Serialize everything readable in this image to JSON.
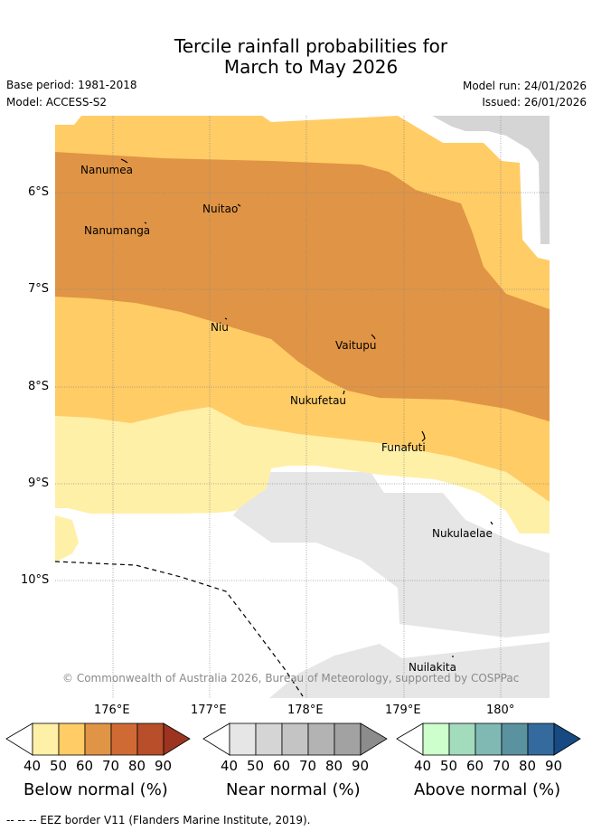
{
  "header": {
    "title_line1": "Tercile rainfall probabilities for",
    "title_line2": "March to May 2026",
    "base_period": "Base period: 1981-2018",
    "model": "Model: ACCESS-S2",
    "model_run": "Model run: 24/01/2026",
    "issued": "Issued: 26/01/2026"
  },
  "map": {
    "lat_labels": [
      "6°S",
      "7°S",
      "8°S",
      "9°S",
      "10°S"
    ],
    "lon_labels": [
      "176°E",
      "177°E",
      "178°E",
      "179°E",
      "180°"
    ],
    "places": [
      {
        "id": "nanumea",
        "name": "Nanumea"
      },
      {
        "id": "nuitao",
        "name": "Nuitao"
      },
      {
        "id": "nanumanga",
        "name": "Nanumanga"
      },
      {
        "id": "niu",
        "name": "Niu"
      },
      {
        "id": "vaitupu",
        "name": "Vaitupu"
      },
      {
        "id": "nukufetau",
        "name": "Nukufetau"
      },
      {
        "id": "funafuti",
        "name": "Funafuti"
      },
      {
        "id": "nukulaelae",
        "name": "Nukulaelae"
      },
      {
        "id": "nuilakita",
        "name": "Nuilakita"
      }
    ],
    "copyright": "© Commonwealth of Australia 2026, Bureau of Meteorology, supported by COSPPac"
  },
  "legend": {
    "below": {
      "title": "Below normal (%)",
      "ticks": [
        "40",
        "50",
        "60",
        "70",
        "80",
        "90"
      ],
      "colors": [
        "#fff0a8",
        "#ffcc66",
        "#e09445",
        "#d06a35",
        "#b84e2a",
        "#9c3420"
      ]
    },
    "near": {
      "title": "Near normal (%)",
      "ticks": [
        "40",
        "50",
        "60",
        "70",
        "80",
        "90"
      ],
      "colors": [
        "#e6e6e6",
        "#d5d5d5",
        "#c4c4c4",
        "#b3b3b3",
        "#a2a2a2",
        "#8c8c8c"
      ]
    },
    "above": {
      "title": "Above normal (%)",
      "ticks": [
        "40",
        "50",
        "60",
        "70",
        "80",
        "90"
      ],
      "colors": [
        "#ccffcc",
        "#a3dbbd",
        "#80b9b4",
        "#5a92a0",
        "#356a9e",
        "#174a82"
      ]
    }
  },
  "footnote": "--  --  -- EEZ border V11 (Flanders Marine Institute, 2019)."
}
